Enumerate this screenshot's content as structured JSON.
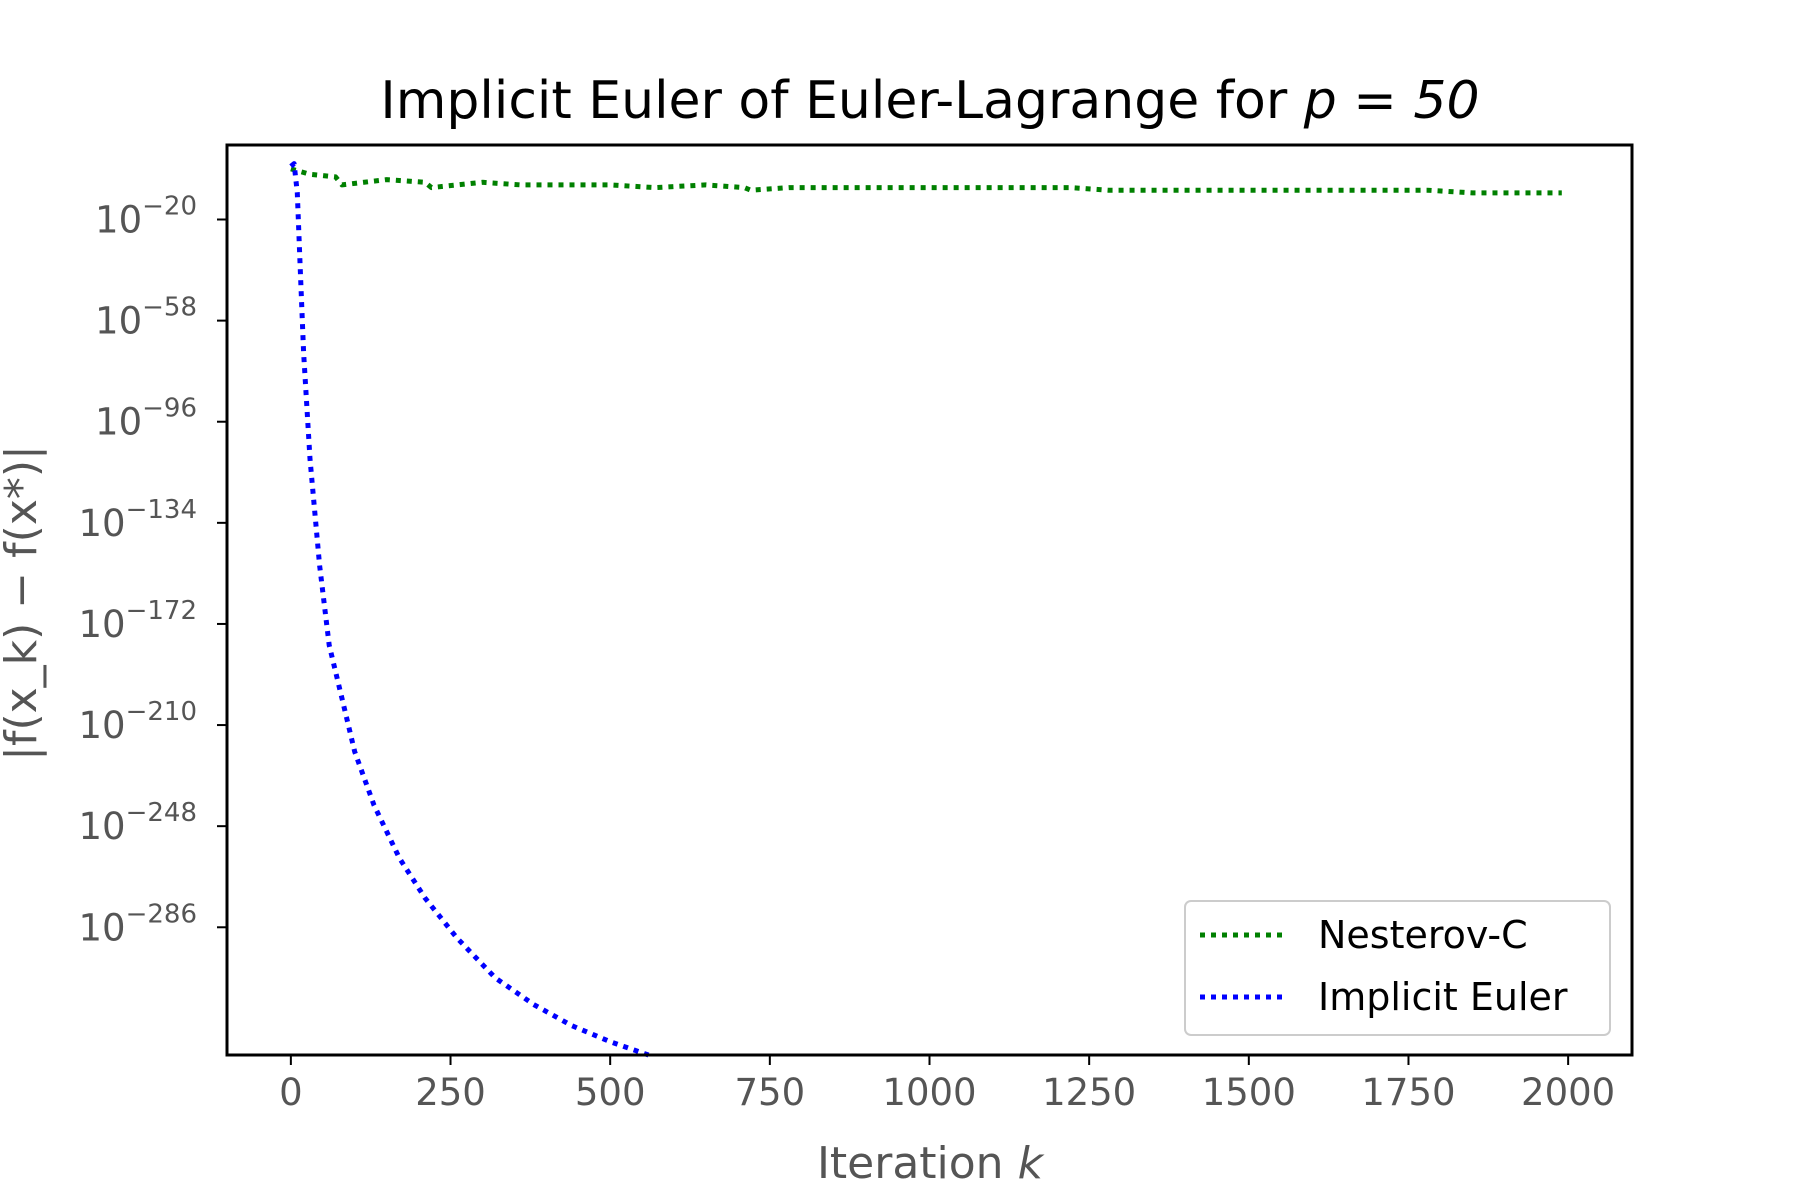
{
  "chart_data": {
    "type": "line",
    "title": "Implicit Euler of Euler-Lagrange for p = 50",
    "title_prefix": "Implicit Euler of Euler-Lagrange for ",
    "title_math": "p = 50",
    "xlabel": "Iteration k",
    "xlabel_prefix": "Iteration ",
    "xlabel_var": "k",
    "ylabel": "|f(x_k) − f(x*)|",
    "xlim": [
      -100,
      2100
    ],
    "ylim_exponent": [
      -334,
      8
    ],
    "y_scale": "log",
    "grid": false,
    "legend_position": "lower-right",
    "x_ticks": [
      "0",
      "250",
      "500",
      "750",
      "1000",
      "1250",
      "1500",
      "1750",
      "2000"
    ],
    "x_tick_values": [
      0,
      250,
      500,
      750,
      1000,
      1250,
      1500,
      1750,
      2000
    ],
    "y_ticks": [
      {
        "base": "10",
        "exp": "−20",
        "value": -20
      },
      {
        "base": "10",
        "exp": "−58",
        "value": -58
      },
      {
        "base": "10",
        "exp": "−96",
        "value": -96
      },
      {
        "base": "10",
        "exp": "−134",
        "value": -134
      },
      {
        "base": "10",
        "exp": "−172",
        "value": -172
      },
      {
        "base": "10",
        "exp": "−210",
        "value": -210
      },
      {
        "base": "10",
        "exp": "−248",
        "value": -248
      },
      {
        "base": "10",
        "exp": "−286",
        "value": -286
      }
    ],
    "series": [
      {
        "name": "Nesterov-C",
        "color": "#008000",
        "style": "dotted",
        "x": [
          0,
          30,
          70,
          80,
          150,
          210,
          220,
          300,
          360,
          440,
          500,
          570,
          650,
          710,
          720,
          780,
          850,
          920,
          1000,
          1070,
          1150,
          1220,
          1280,
          1350,
          1420,
          1500,
          1570,
          1640,
          1700,
          1780,
          1850,
          1920,
          1990
        ],
        "log10_y": [
          -1,
          -3,
          -4,
          -7,
          -5,
          -6,
          -8,
          -6,
          -7,
          -7,
          -7,
          -8,
          -7,
          -8,
          -9,
          -8,
          -8,
          -8,
          -8,
          -8,
          -8,
          -8,
          -9,
          -9,
          -9,
          -9,
          -9,
          -9,
          -9,
          -9,
          -10,
          -10,
          -10
        ]
      },
      {
        "name": "Implicit Euler",
        "color": "#0000ff",
        "style": "dotted",
        "x": [
          0,
          5,
          10,
          15,
          20,
          30,
          45,
          60,
          80,
          100,
          130,
          170,
          210,
          260,
          320,
          380,
          440,
          500,
          560
        ],
        "log10_y": [
          0,
          1,
          -10,
          -40,
          -70,
          -110,
          -150,
          -180,
          -200,
          -220,
          -240,
          -260,
          -275,
          -290,
          -305,
          -315,
          -323,
          -329,
          -334
        ]
      }
    ]
  }
}
